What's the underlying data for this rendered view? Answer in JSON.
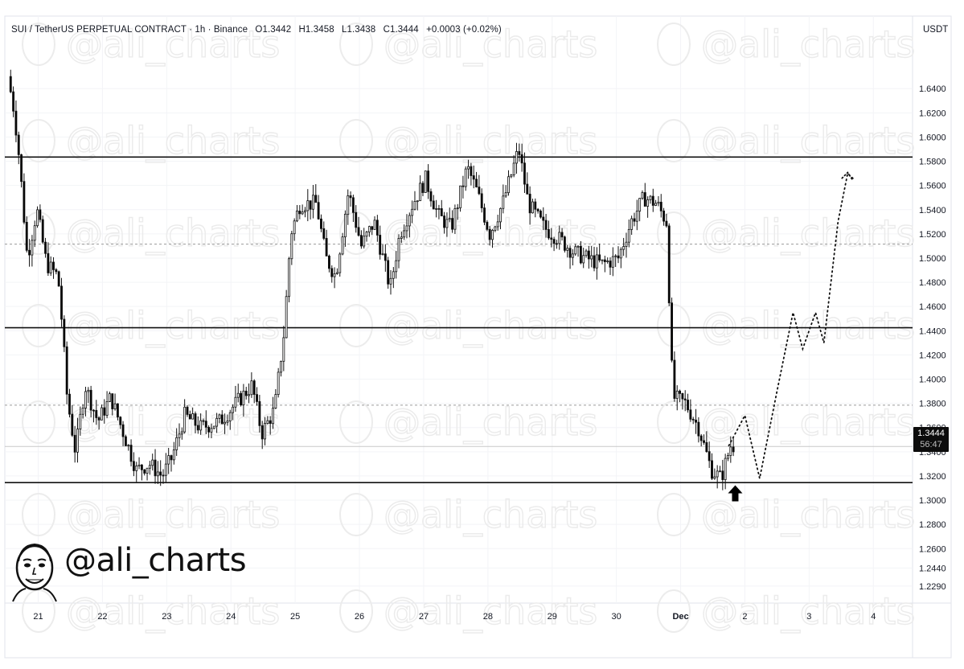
{
  "header": {
    "symbol": "SUI / TetherUS PERPETUAL CONTRACT · 1h · Binance",
    "open": "O1.3442",
    "high": "H1.3458",
    "low": "L1.3438",
    "close": "C1.3444",
    "change": "+0.0003 (+0.02%)"
  },
  "currency": "USDT",
  "watermark": "@ali_charts",
  "branding": {
    "handle": "@ali_charts"
  },
  "price_tag": {
    "price": "1.3444",
    "countdown": "56:47"
  },
  "colors": {
    "candle_up": "#ffffff",
    "candle_down": "#000000",
    "line": "#000000",
    "grid": "#f0f3fa"
  },
  "chart_data": {
    "type": "candlestick",
    "ylim": [
      1.215,
      1.68
    ],
    "y_ticks": [
      1.64,
      1.62,
      1.6,
      1.58,
      1.56,
      1.54,
      1.52,
      1.5,
      1.48,
      1.46,
      1.44,
      1.42,
      1.4,
      1.38,
      1.36,
      1.34,
      1.32,
      1.3,
      1.28,
      1.26,
      1.244,
      1.229
    ],
    "y_tick_labels": [
      "1.6400",
      "1.6200",
      "1.6000",
      "1.5800",
      "1.5600",
      "1.5400",
      "1.5200",
      "1.5000",
      "1.4800",
      "1.4600",
      "1.4400",
      "1.4200",
      "1.4000",
      "1.3800",
      "1.3600",
      "1.3400",
      "1.3200",
      "1.3000",
      "1.2800",
      "1.2600",
      "1.2440",
      "1.2290"
    ],
    "x_labels": [
      {
        "label": "21",
        "day": 0.45
      },
      {
        "label": "22",
        "day": 1.45
      },
      {
        "label": "23",
        "day": 2.45
      },
      {
        "label": "24",
        "day": 3.45
      },
      {
        "label": "25",
        "day": 4.45
      },
      {
        "label": "26",
        "day": 5.45
      },
      {
        "label": "27",
        "day": 6.45
      },
      {
        "label": "28",
        "day": 7.45
      },
      {
        "label": "29",
        "day": 8.45
      },
      {
        "label": "30",
        "day": 9.45
      },
      {
        "label": "Dec",
        "day": 10.45
      },
      {
        "label": "2",
        "day": 11.45
      },
      {
        "label": "3",
        "day": 12.45
      },
      {
        "label": "4",
        "day": 13.45
      }
    ],
    "xlim_days": [
      -0.07,
      14.06
    ],
    "support_resistance_lines": [
      1.5835,
      1.4425,
      1.3145
    ],
    "dashed_lines": [
      1.5115,
      1.3785
    ],
    "current_price": 1.3444,
    "price_path": [
      [
        0.0,
        1.65
      ],
      [
        0.1,
        1.62
      ],
      [
        0.18,
        1.58
      ],
      [
        0.3,
        1.5
      ],
      [
        0.45,
        1.54
      ],
      [
        0.6,
        1.495
      ],
      [
        0.78,
        1.485
      ],
      [
        0.85,
        1.44
      ],
      [
        0.92,
        1.385
      ],
      [
        1.05,
        1.34
      ],
      [
        1.2,
        1.395
      ],
      [
        1.4,
        1.365
      ],
      [
        1.6,
        1.385
      ],
      [
        1.8,
        1.355
      ],
      [
        2.0,
        1.325
      ],
      [
        2.2,
        1.33
      ],
      [
        2.4,
        1.32
      ],
      [
        2.55,
        1.335
      ],
      [
        2.75,
        1.37
      ],
      [
        3.0,
        1.36
      ],
      [
        3.3,
        1.365
      ],
      [
        3.55,
        1.38
      ],
      [
        3.8,
        1.395
      ],
      [
        3.95,
        1.355
      ],
      [
        4.15,
        1.375
      ],
      [
        4.3,
        1.44
      ],
      [
        4.4,
        1.52
      ],
      [
        4.55,
        1.545
      ],
      [
        4.8,
        1.545
      ],
      [
        4.95,
        1.5
      ],
      [
        5.1,
        1.485
      ],
      [
        5.3,
        1.555
      ],
      [
        5.5,
        1.51
      ],
      [
        5.7,
        1.53
      ],
      [
        5.95,
        1.475
      ],
      [
        6.1,
        1.52
      ],
      [
        6.3,
        1.545
      ],
      [
        6.5,
        1.565
      ],
      [
        6.7,
        1.535
      ],
      [
        6.9,
        1.525
      ],
      [
        7.15,
        1.575
      ],
      [
        7.3,
        1.555
      ],
      [
        7.5,
        1.52
      ],
      [
        7.7,
        1.545
      ],
      [
        7.95,
        1.59
      ],
      [
        8.1,
        1.545
      ],
      [
        8.35,
        1.525
      ],
      [
        8.6,
        1.515
      ],
      [
        8.8,
        1.505
      ],
      [
        9.0,
        1.5
      ],
      [
        9.25,
        1.495
      ],
      [
        9.5,
        1.5
      ],
      [
        9.7,
        1.53
      ],
      [
        9.9,
        1.55
      ],
      [
        10.1,
        1.545
      ],
      [
        10.25,
        1.53
      ],
      [
        10.35,
        1.385
      ],
      [
        10.55,
        1.38
      ],
      [
        10.75,
        1.36
      ],
      [
        10.95,
        1.325
      ],
      [
        11.1,
        1.318
      ],
      [
        11.25,
        1.345
      ]
    ],
    "projection_path": [
      [
        11.2,
        1.345
      ],
      [
        11.45,
        1.37
      ],
      [
        11.68,
        1.318
      ],
      [
        11.95,
        1.39
      ],
      [
        12.2,
        1.455
      ],
      [
        12.35,
        1.425
      ],
      [
        12.55,
        1.455
      ],
      [
        12.68,
        1.43
      ],
      [
        12.9,
        1.53
      ],
      [
        13.05,
        1.57
      ],
      [
        13.15,
        1.565
      ]
    ],
    "arrow_marker": {
      "day": 11.3,
      "price": 1.305
    }
  }
}
